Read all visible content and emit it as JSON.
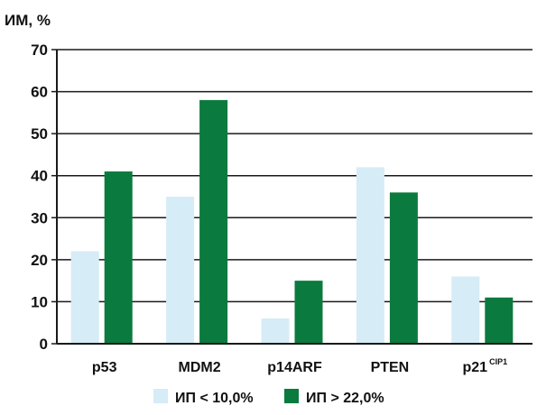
{
  "chart_data": {
    "type": "bar",
    "ylabel": "ИМ, %",
    "xlabel": "",
    "title": "",
    "ylim": [
      0,
      70
    ],
    "yticks": [
      0,
      10,
      20,
      30,
      40,
      50,
      60,
      70
    ],
    "grid": true,
    "legend_position": "bottom",
    "categories": [
      {
        "label": "p53",
        "sup": ""
      },
      {
        "label": "MDM2",
        "sup": ""
      },
      {
        "label": "p14ARF",
        "sup": ""
      },
      {
        "label": "PTEN",
        "sup": ""
      },
      {
        "label": "p21",
        "sup": "CIP1"
      }
    ],
    "series": [
      {
        "name": "ИП < 10,0%",
        "color": "#d6ecf6",
        "values": [
          22,
          35,
          6,
          42,
          16
        ]
      },
      {
        "name": "ИП > 22,0%",
        "color": "#0b7a3e",
        "values": [
          41,
          58,
          15,
          36,
          11
        ]
      }
    ]
  }
}
